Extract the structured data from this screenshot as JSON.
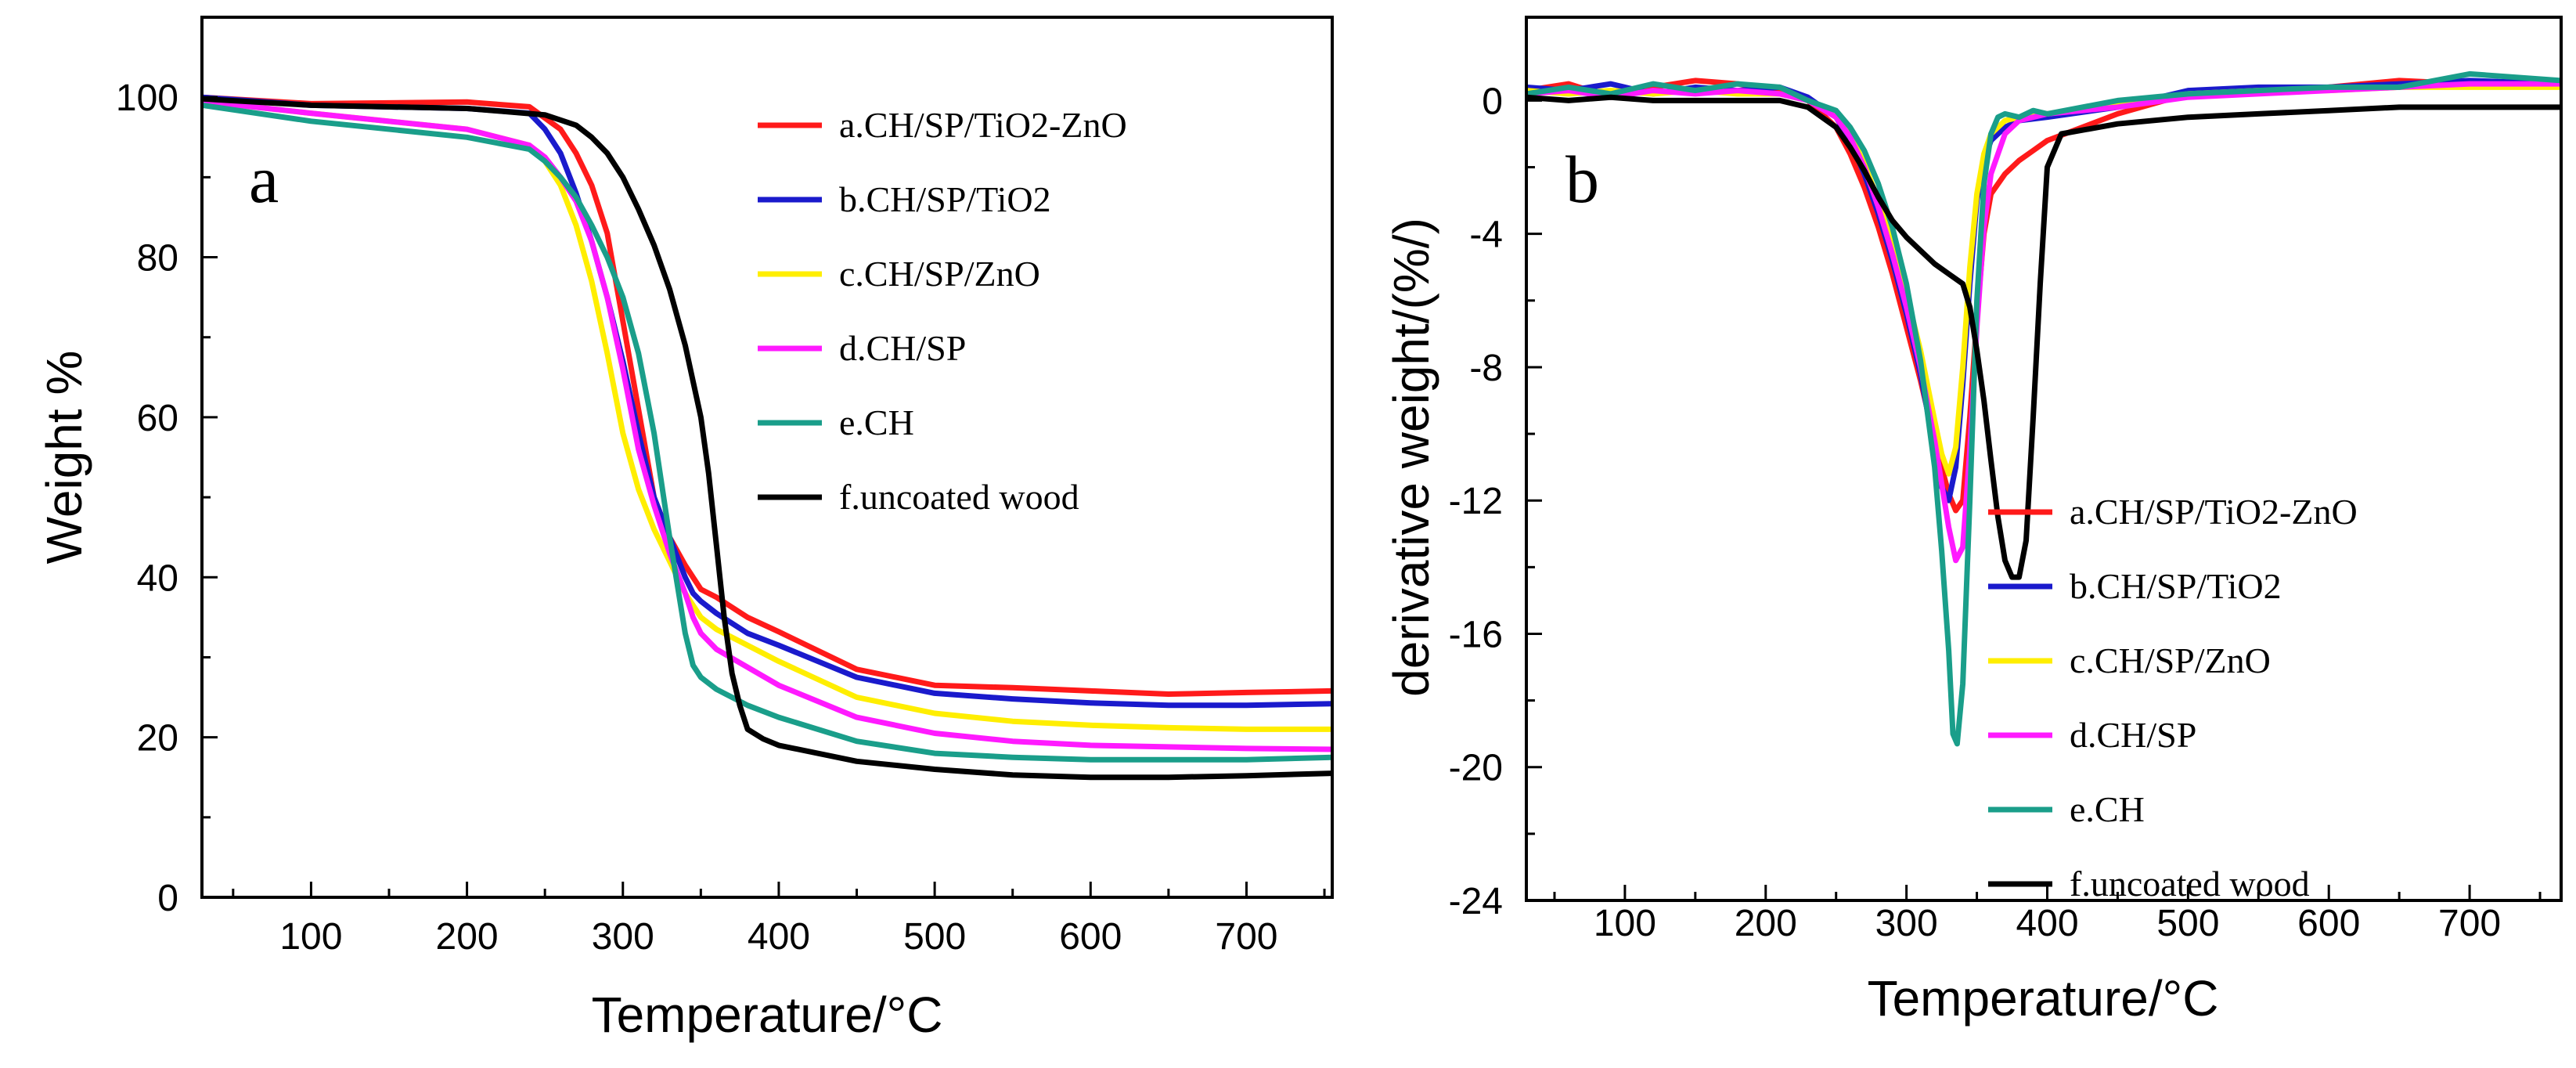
{
  "chart_data": [
    {
      "type": "line",
      "panel_label": "a",
      "title": "",
      "xlabel": "Temperature/°C",
      "ylabel": "Weight %",
      "xlim": [
        30,
        755
      ],
      "ylim": [
        0,
        110
      ],
      "xticks": [
        100,
        200,
        300,
        400,
        500,
        600,
        700
      ],
      "yticks": [
        0,
        20,
        40,
        60,
        80,
        100
      ],
      "legend_position": "top-right",
      "series": [
        {
          "name": "a.CH/SP/TiO2-ZnO",
          "color": "#ff1a1a",
          "x": [
            30,
            100,
            200,
            240,
            260,
            270,
            280,
            290,
            300,
            310,
            320,
            330,
            340,
            345,
            350,
            360,
            380,
            400,
            450,
            500,
            550,
            600,
            650,
            700,
            755
          ],
          "y": [
            100,
            99.2,
            99.4,
            98.8,
            96,
            93,
            89,
            83,
            72,
            61,
            50,
            45,
            41.5,
            40,
            38.5,
            37.5,
            35,
            33.2,
            28.5,
            26.5,
            26.2,
            25.8,
            25.4,
            25.6,
            25.8
          ]
        },
        {
          "name": "b.CH/SP/TiO2",
          "color": "#1a1acc",
          "x": [
            30,
            100,
            200,
            240,
            250,
            260,
            270,
            280,
            290,
            300,
            310,
            320,
            330,
            340,
            345,
            350,
            360,
            380,
            400,
            450,
            500,
            550,
            600,
            650,
            700,
            755
          ],
          "y": [
            100,
            99,
            98.6,
            98,
            96,
            93,
            88,
            82,
            75,
            67,
            58,
            50,
            45,
            40,
            38,
            37,
            35.5,
            33,
            31.5,
            27.5,
            25.5,
            24.8,
            24.3,
            24,
            24,
            24.2
          ]
        },
        {
          "name": "c.CH/SP/ZnO",
          "color": "#ffee00",
          "x": [
            30,
            100,
            200,
            240,
            250,
            260,
            270,
            280,
            290,
            300,
            310,
            320,
            330,
            335,
            340,
            350,
            360,
            400,
            450,
            500,
            550,
            600,
            650,
            700,
            755
          ],
          "y": [
            99.5,
            98,
            96,
            94,
            92,
            89,
            84,
            77,
            68,
            58,
            51,
            46,
            42,
            40,
            38,
            35,
            33.5,
            29.5,
            25,
            23,
            22,
            21.5,
            21.2,
            21,
            21
          ]
        },
        {
          "name": "d.CH/SP",
          "color": "#ff1aff",
          "x": [
            30,
            100,
            200,
            240,
            250,
            260,
            270,
            280,
            290,
            300,
            310,
            320,
            330,
            340,
            345,
            350,
            360,
            400,
            450,
            500,
            550,
            600,
            650,
            700,
            755
          ],
          "y": [
            99.5,
            98,
            96,
            94,
            92.5,
            90,
            87,
            82,
            75,
            66,
            56,
            49,
            43,
            38,
            35,
            33,
            31,
            26.5,
            22.5,
            20.5,
            19.5,
            19,
            18.8,
            18.6,
            18.5
          ]
        },
        {
          "name": "e.CH",
          "color": "#1a9e8a",
          "x": [
            30,
            100,
            200,
            240,
            250,
            260,
            270,
            280,
            290,
            300,
            310,
            320,
            330,
            340,
            345,
            350,
            360,
            380,
            400,
            450,
            500,
            550,
            600,
            650,
            700,
            755
          ],
          "y": [
            99,
            97,
            95,
            93.5,
            92,
            90,
            87.5,
            84,
            80,
            75,
            68,
            58,
            45,
            33,
            29,
            27.5,
            26,
            24,
            22.5,
            19.5,
            18,
            17.5,
            17.2,
            17.2,
            17.2,
            17.5
          ]
        },
        {
          "name": "f.uncoated wood",
          "color": "#000000",
          "x": [
            30,
            100,
            200,
            250,
            270,
            280,
            290,
            300,
            310,
            320,
            330,
            340,
            350,
            355,
            360,
            365,
            370,
            375,
            380,
            390,
            400,
            450,
            500,
            550,
            600,
            650,
            700,
            755
          ],
          "y": [
            99.8,
            99,
            98.6,
            97.8,
            96.5,
            95,
            93,
            90,
            86,
            81.5,
            76,
            69,
            60,
            53,
            44,
            35,
            28,
            24,
            21,
            19.8,
            19,
            17,
            16,
            15.3,
            15,
            15,
            15.2,
            15.5
          ]
        }
      ]
    },
    {
      "type": "line",
      "panel_label": "b",
      "title": "",
      "xlabel": "Temperature/°C",
      "ylabel": "derivative weight/(%/)",
      "xlim": [
        30,
        765
      ],
      "ylim": [
        -24,
        2.5
      ],
      "xticks": [
        100,
        200,
        300,
        400,
        500,
        600,
        700
      ],
      "yticks": [
        0,
        -4,
        -8,
        -12,
        -16,
        -20,
        -24
      ],
      "legend_position": "bottom-right",
      "series": [
        {
          "name": "a.CH/SP/TiO2-ZnO",
          "color": "#ff1a1a",
          "x": [
            30,
            60,
            90,
            120,
            150,
            180,
            210,
            230,
            250,
            260,
            270,
            280,
            290,
            300,
            310,
            320,
            330,
            335,
            340,
            345,
            350,
            355,
            360,
            370,
            380,
            390,
            400,
            450,
            500,
            550,
            600,
            650,
            700,
            765
          ],
          "y": [
            0.3,
            0.5,
            0.1,
            0.4,
            0.6,
            0.5,
            0.3,
            0,
            -0.8,
            -1.6,
            -2.6,
            -3.8,
            -5.2,
            -6.8,
            -8.4,
            -10.2,
            -11.8,
            -12.3,
            -12.0,
            -9.5,
            -6.5,
            -4.0,
            -2.8,
            -2.2,
            -1.8,
            -1.5,
            -1.2,
            -0.4,
            0.2,
            0.3,
            0.4,
            0.6,
            0.5,
            0.5
          ]
        },
        {
          "name": "b.CH/SP/TiO2",
          "color": "#1a1acc",
          "x": [
            30,
            60,
            90,
            120,
            150,
            180,
            210,
            230,
            250,
            260,
            270,
            280,
            290,
            300,
            310,
            320,
            325,
            330,
            335,
            340,
            345,
            350,
            355,
            360,
            370,
            380,
            400,
            450,
            500,
            550,
            600,
            650,
            700,
            765
          ],
          "y": [
            0.4,
            0.3,
            0.5,
            0.2,
            0.4,
            0.3,
            0.4,
            0.1,
            -0.5,
            -1.2,
            -2.2,
            -3.4,
            -4.8,
            -6.4,
            -8.2,
            -10.5,
            -11.6,
            -12.0,
            -11.0,
            -8.5,
            -5.5,
            -3.0,
            -1.8,
            -1.2,
            -0.8,
            -0.6,
            -0.5,
            -0.2,
            0.3,
            0.4,
            0.4,
            0.5,
            0.6,
            0.5
          ]
        },
        {
          "name": "c.CH/SP/ZnO",
          "color": "#ffee00",
          "x": [
            30,
            60,
            90,
            120,
            150,
            180,
            210,
            230,
            250,
            260,
            270,
            280,
            290,
            300,
            310,
            320,
            325,
            330,
            335,
            340,
            345,
            350,
            355,
            360,
            370,
            380,
            400,
            450,
            500,
            550,
            600,
            650,
            700,
            765
          ],
          "y": [
            0.3,
            0.2,
            0.3,
            0.2,
            0.3,
            0.2,
            0.2,
            0,
            -0.4,
            -1.0,
            -1.9,
            -3.0,
            -4.3,
            -5.8,
            -7.5,
            -9.6,
            -10.6,
            -11.2,
            -10.4,
            -8.0,
            -5.0,
            -2.8,
            -1.6,
            -1.0,
            -0.6,
            -0.5,
            -0.4,
            -0.1,
            0.2,
            0.3,
            0.3,
            0.4,
            0.4,
            0.4
          ]
        },
        {
          "name": "d.CH/SP",
          "color": "#ff1aff",
          "x": [
            30,
            60,
            90,
            120,
            150,
            180,
            210,
            230,
            250,
            260,
            270,
            280,
            290,
            300,
            310,
            320,
            330,
            335,
            340,
            345,
            350,
            355,
            360,
            370,
            380,
            400,
            450,
            500,
            550,
            600,
            650,
            700,
            765
          ],
          "y": [
            0.2,
            0.3,
            0.1,
            0.3,
            0.2,
            0.3,
            0.2,
            0,
            -0.5,
            -1.1,
            -2.0,
            -3.2,
            -4.6,
            -6.2,
            -8.0,
            -10.2,
            -12.8,
            -13.8,
            -13.4,
            -10.5,
            -6.8,
            -3.8,
            -2.2,
            -1.0,
            -0.6,
            -0.4,
            -0.2,
            0.1,
            0.2,
            0.3,
            0.4,
            0.5,
            0.5
          ]
        },
        {
          "name": "e.CH",
          "color": "#1a9e8a",
          "x": [
            30,
            60,
            90,
            120,
            150,
            180,
            210,
            230,
            250,
            260,
            270,
            280,
            290,
            300,
            310,
            320,
            325,
            330,
            333,
            336,
            340,
            345,
            350,
            355,
            360,
            365,
            370,
            380,
            390,
            400,
            450,
            500,
            550,
            600,
            650,
            700,
            765
          ],
          "y": [
            0.2,
            0.4,
            0.2,
            0.5,
            0.3,
            0.5,
            0.4,
            0,
            -0.3,
            -0.8,
            -1.5,
            -2.5,
            -3.8,
            -5.5,
            -7.8,
            -11.0,
            -13.5,
            -16.5,
            -19.0,
            -19.3,
            -17.5,
            -12.0,
            -6.0,
            -2.5,
            -1.0,
            -0.5,
            -0.4,
            -0.5,
            -0.3,
            -0.4,
            0,
            0.2,
            0.3,
            0.4,
            0.4,
            0.8,
            0.6
          ]
        },
        {
          "name": "f.uncoated wood",
          "color": "#000000",
          "x": [
            30,
            60,
            90,
            120,
            150,
            180,
            210,
            230,
            250,
            260,
            270,
            280,
            290,
            300,
            310,
            320,
            330,
            340,
            345,
            350,
            355,
            360,
            365,
            370,
            375,
            380,
            385,
            390,
            395,
            400,
            410,
            450,
            500,
            550,
            600,
            650,
            700,
            765
          ],
          "y": [
            0.1,
            0,
            0.1,
            0,
            0,
            0,
            0,
            -0.2,
            -0.8,
            -1.4,
            -2.1,
            -2.9,
            -3.6,
            -4.1,
            -4.5,
            -4.9,
            -5.2,
            -5.5,
            -6.2,
            -7.5,
            -9.0,
            -10.8,
            -12.5,
            -13.8,
            -14.3,
            -14.3,
            -13.2,
            -9.5,
            -5.5,
            -2.0,
            -1.0,
            -0.7,
            -0.5,
            -0.4,
            -0.3,
            -0.2,
            -0.2,
            -0.2
          ]
        }
      ]
    }
  ]
}
